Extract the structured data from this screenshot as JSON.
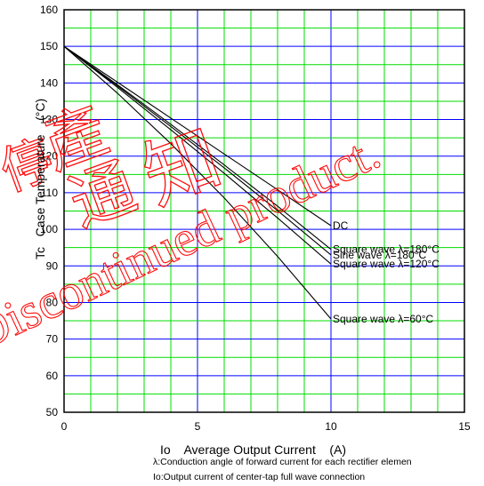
{
  "chart_data": {
    "type": "line",
    "xlabel": "Io    Average Output Current    (A)",
    "ylabel": "Tc   Case Temperature    (°C)",
    "xlim": [
      0,
      15
    ],
    "ylim": [
      50,
      160
    ],
    "x_ticks": [
      "0",
      "5",
      "10",
      "15"
    ],
    "y_ticks": [
      "50",
      "60",
      "70",
      "80",
      "90",
      "100",
      "110",
      "120",
      "130",
      "140",
      "150",
      "160"
    ],
    "grid": true,
    "series": [
      {
        "name": "DC",
        "x": [
          0,
          2,
          4,
          6,
          8,
          10
        ],
        "y": [
          150,
          140.2,
          130.4,
          120.6,
          110.8,
          101
        ]
      },
      {
        "name": "Square wave λ=180°C",
        "x": [
          0,
          2,
          4,
          6,
          8,
          10
        ],
        "y": [
          150,
          139.5,
          128.7,
          117.6,
          106.3,
          94.5
        ]
      },
      {
        "name": "Sine wave  λ=180°C",
        "x": [
          0,
          2,
          4,
          6,
          8,
          10
        ],
        "y": [
          150,
          139.2,
          128.1,
          116.8,
          105.1,
          93
        ]
      },
      {
        "name": "Square wave  λ=120°C",
        "x": [
          0,
          2,
          4,
          6,
          8,
          10
        ],
        "y": [
          150,
          138.8,
          127.2,
          115.3,
          103.1,
          90.5
        ]
      },
      {
        "name": "Square wave  λ=60°C",
        "x": [
          0,
          2,
          4,
          6,
          8,
          10
        ],
        "y": [
          150,
          137.2,
          123.4,
          108.6,
          92.6,
          75.5
        ]
      }
    ],
    "notes": [
      "λ:Conduction angle of forward current for each rectifier elemen",
      "Io:Output current of center-tap full wave connection"
    ],
    "watermark": [
      "停",
      "產",
      "通",
      "知",
      "Discontinued product."
    ],
    "colors": {
      "grid_major": "#0000ff",
      "grid_minor": "#00dd00",
      "curve": "#000000",
      "watermark": "#ff0000"
    }
  }
}
